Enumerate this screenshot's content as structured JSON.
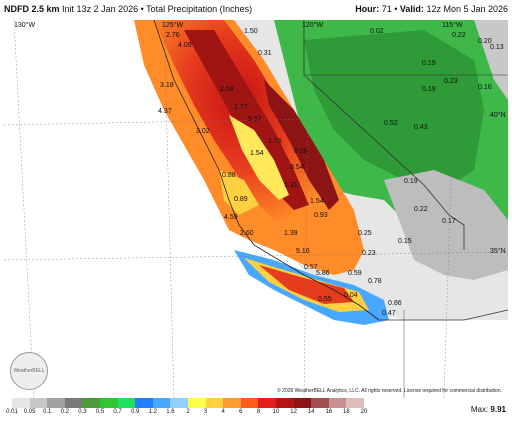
{
  "header": {
    "model": "NDFD 2.5 km",
    "init": "Init 13z 2 Jan 2026",
    "sep": "•",
    "field": "Total Precipitation (Inches)",
    "hour_label": "Hour:",
    "hour": "71",
    "valid_label": "Valid:",
    "valid": "12z Mon 5 Jan 2026"
  },
  "axes": {
    "lon_130": "130°W",
    "lon_125": "125°W",
    "lon_120": "120°W",
    "lon_115": "115°W",
    "lat_40": "40°N",
    "lat_35": "35°N"
  },
  "values": [
    "2.76",
    "4.09",
    "1.50",
    "0.31",
    "0.02",
    "0.22",
    "0.20",
    "0.13",
    "3.18",
    "2.59",
    "0.19",
    "0.23",
    "0.16",
    "0.19",
    "4.37",
    "3.02",
    "1.77",
    "5.57",
    "0.52",
    "0.43",
    "1.76",
    "1.54",
    "0.28",
    "1.31",
    "3.54",
    "0.88",
    "0.89",
    "1.54",
    "0.93",
    "0.22",
    "0.19",
    "4.59",
    "2.60",
    "1.39",
    "0.25",
    "0.57",
    "0.15",
    "0.23",
    "0.59",
    "0.78",
    "0.04",
    "0.55",
    "0.47",
    "0.86",
    "5.86",
    "5.16",
    "0.17"
  ],
  "copyright": "© 2026 WeatherBELL Analytics, LLC. All rights reserved. License required for commercial distribution.",
  "logo_text": "WeatherBELL",
  "legend": {
    "ticks": [
      "0.01",
      "0.05",
      "0.1",
      "0.2",
      "0.3",
      "0.5",
      "0.7",
      "0.9",
      "1.2",
      "1.6",
      "2",
      "3",
      "4",
      "6",
      "8",
      "10",
      "12",
      "14",
      "16",
      "18",
      "20"
    ],
    "colors": [
      "#e6e6e6",
      "#c8c8c8",
      "#a0a0a0",
      "#7a7a7a",
      "#4e9a3c",
      "#2fc832",
      "#20e060",
      "#1f7fff",
      "#48a8ff",
      "#90d0ff",
      "#ffff4c",
      "#ffd040",
      "#ff9c30",
      "#ff5a1e",
      "#e61e1e",
      "#b41414",
      "#8c1414",
      "#a05050",
      "#c89090",
      "#ddbcbc"
    ]
  },
  "max_label": "Max:",
  "max_value": "9.91"
}
